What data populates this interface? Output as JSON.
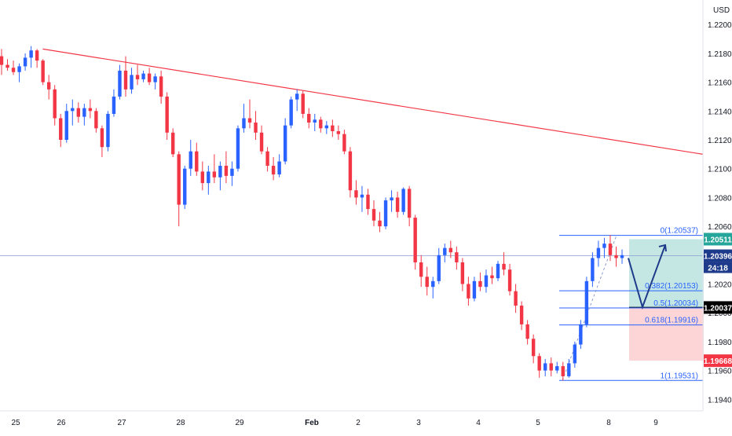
{
  "chart_data": {
    "type": "candlestick",
    "currency": "USD",
    "x_ticks": [
      "25",
      "26",
      "27",
      "28",
      "29",
      "Feb",
      "2",
      "3",
      "4",
      "5",
      "8",
      "9"
    ],
    "y_ticks": [
      "1.22000",
      "1.21800",
      "1.21600",
      "1.21400",
      "1.21200",
      "1.21000",
      "1.20800",
      "1.20600",
      "1.20400",
      "1.20200",
      "1.20000",
      "1.19800",
      "1.19600",
      "1.19400"
    ],
    "ylim": [
      1.1932,
      1.2217
    ],
    "colors": {
      "up": "#2962ff",
      "down": "#f23645",
      "trendline": "#f23645",
      "fib": "#2962ff",
      "target_zone": "#b2dfdb",
      "stop_zone": "#fccbcd"
    },
    "candles": [
      [
        1.2178,
        1.2183,
        1.2165,
        1.2172
      ],
      [
        1.2172,
        1.2176,
        1.2168,
        1.217
      ],
      [
        1.217,
        1.2175,
        1.2165,
        1.2167
      ],
      [
        1.2167,
        1.2173,
        1.216,
        1.2171
      ],
      [
        1.2171,
        1.218,
        1.2168,
        1.2177
      ],
      [
        1.2177,
        1.2185,
        1.217,
        1.2182
      ],
      [
        1.2182,
        1.2183,
        1.217,
        1.2175
      ],
      [
        1.2175,
        1.2176,
        1.2158,
        1.216
      ],
      [
        1.216,
        1.2165,
        1.2148,
        1.2155
      ],
      [
        1.2155,
        1.2158,
        1.213,
        1.2135
      ],
      [
        1.2135,
        1.2138,
        1.2115,
        1.212
      ],
      [
        1.212,
        1.2145,
        1.2118,
        1.214
      ],
      [
        1.214,
        1.2148,
        1.213,
        1.2142
      ],
      [
        1.2142,
        1.2146,
        1.2132,
        1.2136
      ],
      [
        1.2136,
        1.2145,
        1.213,
        1.2142
      ],
      [
        1.2142,
        1.2148,
        1.2135,
        1.214
      ],
      [
        1.214,
        1.2142,
        1.2125,
        1.2128
      ],
      [
        1.2128,
        1.213,
        1.2108,
        1.2115
      ],
      [
        1.2115,
        1.214,
        1.2112,
        1.2138
      ],
      [
        1.2138,
        1.2155,
        1.2136,
        1.215
      ],
      [
        1.215,
        1.2172,
        1.2148,
        1.2168
      ],
      [
        1.2168,
        1.2178,
        1.215,
        1.2155
      ],
      [
        1.2155,
        1.217,
        1.2152,
        1.2165
      ],
      [
        1.2165,
        1.2172,
        1.2158,
        1.2162
      ],
      [
        1.2162,
        1.2168,
        1.216,
        1.2166
      ],
      [
        1.2166,
        1.217,
        1.2158,
        1.216
      ],
      [
        1.216,
        1.2166,
        1.2155,
        1.2164
      ],
      [
        1.2164,
        1.2168,
        1.2145,
        1.215
      ],
      [
        1.215,
        1.2153,
        1.212,
        1.2125
      ],
      [
        1.2125,
        1.2128,
        1.2108,
        1.211
      ],
      [
        1.211,
        1.2112,
        1.206,
        1.2075
      ],
      [
        1.2075,
        1.2102,
        1.2072,
        1.21
      ],
      [
        1.21,
        1.212,
        1.2095,
        1.2112
      ],
      [
        1.2112,
        1.2118,
        1.2095,
        1.2098
      ],
      [
        1.2098,
        1.2105,
        1.2085,
        1.209
      ],
      [
        1.209,
        1.2102,
        1.2082,
        1.2098
      ],
      [
        1.2098,
        1.211,
        1.209,
        1.2094
      ],
      [
        1.2094,
        1.2105,
        1.2085,
        1.2102
      ],
      [
        1.2102,
        1.2112,
        1.209,
        1.2095
      ],
      [
        1.2095,
        1.2105,
        1.2088,
        1.21
      ],
      [
        1.21,
        1.213,
        1.2098,
        1.2128
      ],
      [
        1.2128,
        1.2145,
        1.2125,
        1.2135
      ],
      [
        1.2135,
        1.2148,
        1.2128,
        1.2132
      ],
      [
        1.2132,
        1.214,
        1.212,
        1.2125
      ],
      [
        1.2125,
        1.213,
        1.211,
        1.2112
      ],
      [
        1.2112,
        1.2115,
        1.2098,
        1.2102
      ],
      [
        1.2102,
        1.2108,
        1.2092,
        1.2096
      ],
      [
        1.2096,
        1.211,
        1.2094,
        1.2105
      ],
      [
        1.2105,
        1.2135,
        1.2103,
        1.213
      ],
      [
        1.213,
        1.215,
        1.2128,
        1.2148
      ],
      [
        1.2148,
        1.2155,
        1.214,
        1.2152
      ],
      [
        1.2152,
        1.2154,
        1.2135,
        1.2138
      ],
      [
        1.2138,
        1.2142,
        1.2128,
        1.2132
      ],
      [
        1.2132,
        1.2138,
        1.2126,
        1.2134
      ],
      [
        1.2134,
        1.2136,
        1.2125,
        1.2128
      ],
      [
        1.2128,
        1.2133,
        1.2124,
        1.213
      ],
      [
        1.213,
        1.2134,
        1.2122,
        1.2126
      ],
      [
        1.2126,
        1.213,
        1.212,
        1.2124
      ],
      [
        1.2124,
        1.2127,
        1.211,
        1.2112
      ],
      [
        1.2112,
        1.2115,
        1.208,
        1.2085
      ],
      [
        1.2085,
        1.2092,
        1.2075,
        1.208
      ],
      [
        1.208,
        1.2088,
        1.207,
        1.2082
      ],
      [
        1.2082,
        1.2086,
        1.2068,
        1.2072
      ],
      [
        1.2072,
        1.2078,
        1.206,
        1.2064
      ],
      [
        1.2064,
        1.207,
        1.2056,
        1.206
      ],
      [
        1.206,
        1.208,
        1.2058,
        1.2078
      ],
      [
        1.2078,
        1.2085,
        1.207,
        1.208
      ],
      [
        1.208,
        1.2084,
        1.2066,
        1.207
      ],
      [
        1.207,
        1.2087,
        1.2068,
        1.2086
      ],
      [
        1.2086,
        1.2088,
        1.206,
        1.2066
      ],
      [
        1.2066,
        1.2068,
        1.203,
        1.2035
      ],
      [
        1.2035,
        1.204,
        1.2018,
        1.2025
      ],
      [
        1.2025,
        1.2032,
        1.2012,
        1.2018
      ],
      [
        1.2018,
        1.2025,
        1.201,
        1.2022
      ],
      [
        1.2022,
        1.2045,
        1.202,
        1.204
      ],
      [
        1.204,
        1.2048,
        1.2035,
        1.2045
      ],
      [
        1.2045,
        1.205,
        1.2038,
        1.2042
      ],
      [
        1.2042,
        1.2046,
        1.203,
        1.2035
      ],
      [
        1.2035,
        1.2038,
        1.2015,
        1.202
      ],
      [
        1.202,
        1.2025,
        1.2005,
        1.201
      ],
      [
        1.201,
        1.2025,
        1.2008,
        1.2022
      ],
      [
        1.2022,
        1.2028,
        1.2015,
        1.2018
      ],
      [
        1.2018,
        1.203,
        1.2014,
        1.2026
      ],
      [
        1.2026,
        1.2032,
        1.202,
        1.2024
      ],
      [
        1.2024,
        1.2036,
        1.2022,
        1.2034
      ],
      [
        1.2034,
        1.2042,
        1.2026,
        1.203
      ],
      [
        1.203,
        1.2034,
        1.2012,
        1.2015
      ],
      [
        1.2015,
        1.202,
        1.2,
        1.2005
      ],
      [
        1.2005,
        1.2008,
        1.1988,
        1.1992
      ],
      [
        1.1992,
        1.1995,
        1.1978,
        1.1982
      ],
      [
        1.1982,
        1.1985,
        1.1965,
        1.197
      ],
      [
        1.197,
        1.1972,
        1.1955,
        1.196
      ],
      [
        1.196,
        1.1968,
        1.1956,
        1.1965
      ],
      [
        1.1965,
        1.1969,
        1.1956,
        1.196
      ],
      [
        1.196,
        1.1966,
        1.1958,
        1.1963
      ],
      [
        1.1963,
        1.1966,
        1.1953,
        1.1956
      ],
      [
        1.1956,
        1.1968,
        1.1955,
        1.1965
      ],
      [
        1.1965,
        1.198,
        1.1962,
        1.1978
      ],
      [
        1.1978,
        1.1995,
        1.1975,
        1.1992
      ],
      [
        1.1992,
        1.2025,
        1.199,
        1.2022
      ],
      [
        1.2022,
        1.2042,
        1.2018,
        1.2038
      ],
      [
        1.2038,
        1.205,
        1.2032,
        1.2045
      ],
      [
        1.2045,
        1.2052,
        1.2038,
        1.2048
      ],
      [
        1.2048,
        1.2054,
        1.2036,
        1.204
      ],
      [
        1.204,
        1.2046,
        1.2032,
        1.2038
      ],
      [
        1.2038,
        1.2044,
        1.2034,
        1.204
      ]
    ],
    "candle_positions": [
      0.0,
      0.3,
      0.6,
      0.9,
      1.2,
      1.5,
      1.8,
      2.1,
      2.4,
      2.7,
      3.0,
      3.3,
      3.6,
      3.9,
      4.2,
      4.5,
      4.8,
      5.1,
      5.4,
      5.7,
      6.0,
      6.3,
      6.6,
      6.9,
      7.2,
      7.5,
      7.8,
      8.1,
      8.4,
      8.7,
      9.0,
      9.3,
      9.6,
      9.9,
      10.2,
      10.5,
      10.8,
      11.1,
      11.4,
      11.7,
      12.0,
      12.3,
      12.6,
      12.9,
      13.2,
      13.5,
      13.8,
      14.1,
      14.4,
      14.7,
      15.0,
      15.3,
      15.6,
      15.9,
      16.2,
      16.5,
      16.8,
      17.1,
      17.4,
      17.7,
      18.0,
      18.3,
      18.6,
      18.9,
      19.2,
      19.5,
      19.8,
      20.1,
      20.4,
      20.7,
      21.0,
      21.3,
      21.6,
      21.9,
      22.2,
      22.5,
      22.8,
      23.1,
      23.4,
      23.7,
      24.0,
      24.3,
      24.6,
      24.9,
      25.2,
      25.5,
      25.8,
      26.1,
      26.4,
      26.7,
      27.0,
      27.3,
      27.6,
      27.9,
      28.2,
      28.5,
      28.8,
      29.1,
      29.4,
      29.7,
      30.0,
      30.3,
      30.6,
      30.9,
      31.2,
      31.5,
      31.8
    ],
    "trendline": [
      [
        0.6,
        1.2183
      ],
      [
        36.0,
        1.211
      ]
    ],
    "fib_levels": [
      {
        "label": "0(1.20537)",
        "value": 1.20537
      },
      {
        "label": "0.382(1.20153)",
        "value": 1.20153
      },
      {
        "label": "0.5(1.20034)",
        "value": 1.20034
      },
      {
        "label": "0.618(1.19916)",
        "value": 1.19916
      },
      {
        "label": "1(1.19531)",
        "value": 1.19531
      }
    ],
    "current_price_line": 1.20396,
    "position_zone": {
      "target": 1.20511,
      "entry": 1.20037,
      "stop": 1.19668
    },
    "projection": [
      [
        32.0,
        1.2038
      ],
      [
        33.0,
        1.2004
      ],
      [
        34.0,
        1.2047
      ]
    ],
    "price_tags": [
      {
        "text": "1.20511",
        "value": 1.20511,
        "color": "#26a69a",
        "countdown": ""
      },
      {
        "text": "1.20396",
        "value": 1.20396,
        "color": "#1e3a8a",
        "countdown": "24:18"
      },
      {
        "text": "1.20037",
        "value": 1.20037,
        "color": "#000000",
        "countdown": ""
      },
      {
        "text": "1.19668",
        "value": 1.19668,
        "color": "#f23645",
        "countdown": ""
      }
    ]
  }
}
